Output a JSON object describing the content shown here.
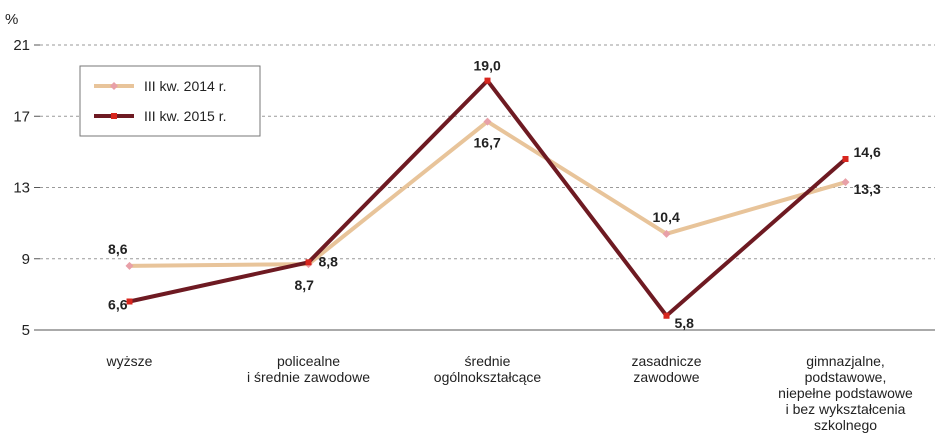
{
  "chart_data": {
    "type": "line",
    "ylabel": "%",
    "ylim": [
      5,
      21
    ],
    "yticks": [
      5,
      9,
      13,
      17,
      21
    ],
    "grid": "horizontal dashed",
    "legend_position": "top-left",
    "categories": [
      [
        "wyższe"
      ],
      [
        "policealne",
        "i średnie zawodowe"
      ],
      [
        "średnie",
        "ogólnokształcące"
      ],
      [
        "zasadnicze",
        "zawodowe"
      ],
      [
        "gimnazjalne,",
        "podstawowe,",
        "niepełne podstawowe",
        "i bez wykształcenia",
        "szkolnego"
      ]
    ],
    "series": [
      {
        "name": "III kw. 2014 r.",
        "color": "#e8c49a",
        "marker_color": "#e8a0a8",
        "values": [
          8.6,
          8.7,
          16.7,
          10.4,
          13.3
        ],
        "labels": [
          "8,6",
          "8,7",
          "16,7",
          "10,4",
          "13,3"
        ]
      },
      {
        "name": "III kw. 2015 r.",
        "color": "#6e1a22",
        "marker_color": "#d8261e",
        "values": [
          6.6,
          8.8,
          19.0,
          5.8,
          14.6
        ],
        "labels": [
          "6,6",
          "8,8",
          "19,0",
          "5,8",
          "14,6"
        ]
      }
    ]
  }
}
